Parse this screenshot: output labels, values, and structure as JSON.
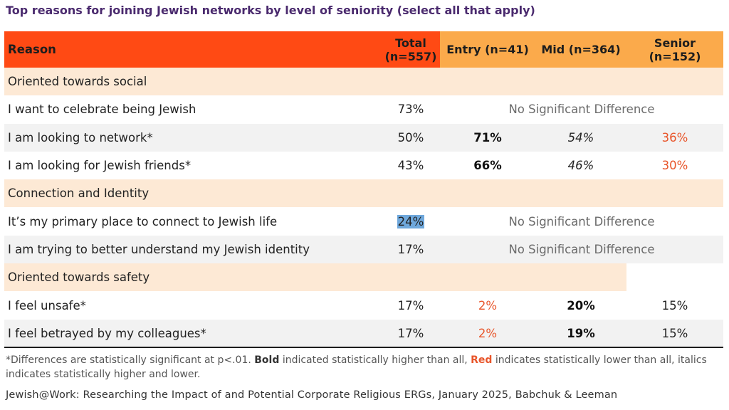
{
  "title": "Top reasons for joining Jewish networks by level of seniority (select all that apply)",
  "header": {
    "reason": "Reason",
    "total_line1": "Total",
    "total_line2": "(n=557)",
    "entry": "Entry (n=41)",
    "mid": "Mid (n=364)",
    "senior_line1": "Senior",
    "senior_line2": "(n=152)"
  },
  "rows": [
    {
      "section": "Oriented towards social"
    },
    {
      "reason": "I want to celebrate being Jewish",
      "total": "73%",
      "note": "No Significant Difference"
    },
    {
      "reason": "I am looking to network*",
      "total": "50%",
      "entry": "71%",
      "mid": "54%",
      "senior": "36%"
    },
    {
      "reason": "I am looking for Jewish friends*",
      "total": "43%",
      "entry": "66%",
      "mid": "46%",
      "senior": "30%"
    },
    {
      "section": "Connection and Identity"
    },
    {
      "reason": "It’s my primary place to connect to Jewish life",
      "total": "24%",
      "note": "No Significant Difference"
    },
    {
      "reason": "I am trying to better understand my Jewish identity",
      "total": "17%",
      "note": "No Significant Difference"
    },
    {
      "section": "Oriented towards safety"
    },
    {
      "reason": "I feel unsafe*",
      "total": "17%",
      "entry": "2%",
      "mid": "20%",
      "senior": "15%"
    },
    {
      "reason": "I feel betrayed by my colleagues*",
      "total": "17%",
      "entry": "2%",
      "mid": "19%",
      "senior": "15%"
    }
  ],
  "footnote": {
    "part1": "*Differences are statistically significant at p<.01. ",
    "bold_word": "Bold",
    "part2": " indicated statistically higher than all, ",
    "red_word": "Red",
    "part3": " indicates statistically lower than all, italics indicates statistically higher and lower."
  },
  "source": "Jewish@Work: Researching the Impact of and Potential Corporate Religious ERGs, January 2025, Babchuk & Leeman",
  "colors": {
    "title": "#4a2a6e",
    "header_primary": "#ff4a14",
    "header_secondary": "#fbaa4b",
    "section_band": "#fde9d5",
    "stripe": "#f2f2f2",
    "red_value": "#e8552a",
    "highlight": "#6fa8dc"
  }
}
